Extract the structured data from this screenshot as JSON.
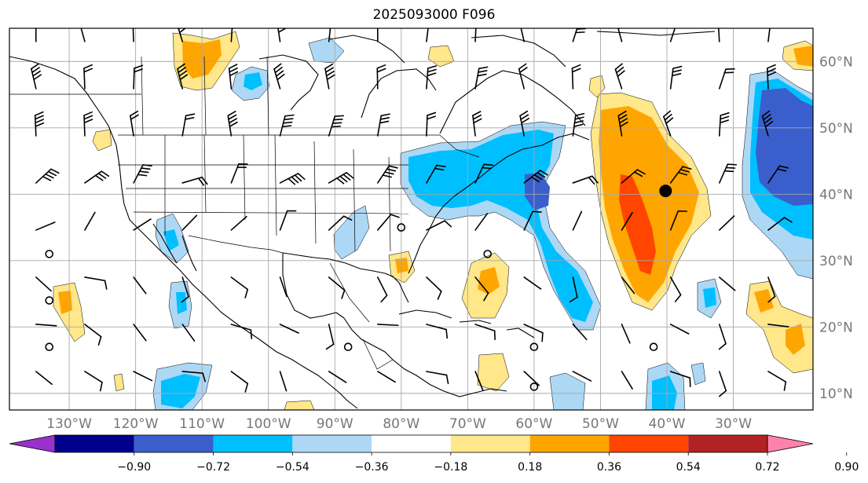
{
  "title": "2025093000 F096",
  "map": {
    "projection": "plate-carree",
    "lon_range": [
      -139,
      -18
    ],
    "lat_range": [
      7.5,
      65
    ],
    "gridlines": true
  },
  "lat_labels": [
    "10°N",
    "20°N",
    "30°N",
    "40°N",
    "50°N",
    "60°N"
  ],
  "lon_labels": [
    "130°W",
    "120°W",
    "110°W",
    "100°W",
    "90°W",
    "80°W",
    "70°W",
    "60°W",
    "50°W",
    "40°W",
    "30°W"
  ],
  "colorbar": {
    "orientation": "horizontal",
    "extend": "both",
    "levels": [
      -0.9,
      -0.72,
      -0.54,
      -0.36,
      -0.18,
      0.18,
      0.36,
      0.54,
      0.72,
      0.9
    ],
    "tick_labels": [
      "−0.90",
      "−0.72",
      "−0.54",
      "−0.36",
      "−0.18",
      "0.18",
      "0.36",
      "0.54",
      "0.72",
      "0.90"
    ],
    "colors": [
      "#9932cc",
      "#00008b",
      "#3a5fcd",
      "#00bfff",
      "#add8f5",
      "#ffffff",
      "#ffe78a",
      "#ffa500",
      "#ff4500",
      "#b22222",
      "#ff82ab"
    ]
  },
  "marker": {
    "lon": -40.2,
    "lat": 40.5,
    "color": "#000000"
  },
  "colors": {
    "coastline": "#000000",
    "gridline": "#a8a8a8",
    "barb": "#000000"
  }
}
